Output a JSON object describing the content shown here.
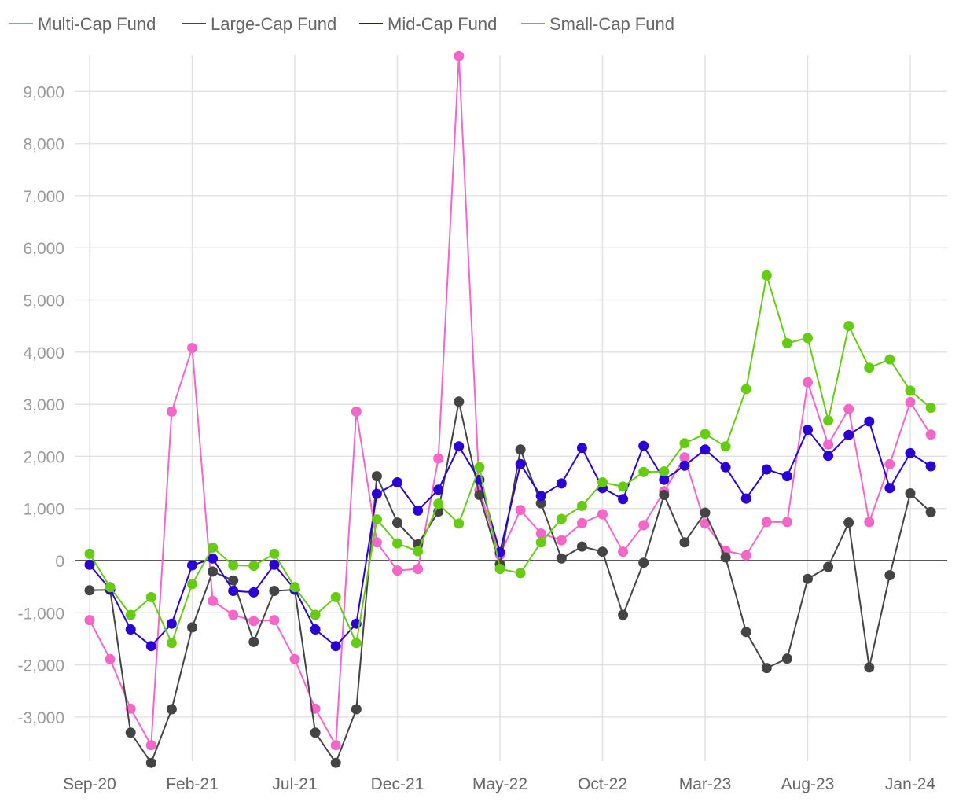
{
  "chart_data": {
    "type": "line",
    "title": "",
    "xlabel": "",
    "ylabel": "",
    "ylim": [
      -3900,
      9700
    ],
    "y_ticks": [
      -3000,
      -2000,
      -1000,
      0,
      1000,
      2000,
      3000,
      4000,
      5000,
      6000,
      7000,
      8000,
      9000
    ],
    "y_tick_labels": [
      "-3,000",
      "-2,000",
      "-1,000",
      "0",
      "1,000",
      "2,000",
      "3,000",
      "4,000",
      "5,000",
      "6,000",
      "7,000",
      "8,000",
      "9,000"
    ],
    "x_tick_labels": [
      "Sep-20",
      "Feb-21",
      "Jul-21",
      "Dec-21",
      "May-22",
      "Oct-22",
      "Mar-23",
      "Aug-23",
      "Jan-24"
    ],
    "categories": [
      "Sep-20",
      "Oct-20",
      "Nov-20",
      "Dec-20",
      "Jan-21",
      "Feb-21",
      "Mar-21",
      "Apr-21",
      "May-21",
      "Jun-21",
      "Jul-21",
      "Aug-21",
      "Sep-21",
      "Oct-21",
      "Nov-21",
      "Dec-21",
      "Jan-22",
      "Feb-22",
      "Mar-22",
      "Apr-22",
      "May-22",
      "Jun-22",
      "Jul-22",
      "Aug-22",
      "Sep-22",
      "Oct-22",
      "Nov-22",
      "Dec-22",
      "Jan-23",
      "Feb-23",
      "Mar-23",
      "Apr-23",
      "May-23",
      "Jun-23",
      "Jul-23",
      "Aug-23",
      "Sep-23",
      "Oct-23",
      "Nov-23",
      "Dec-23",
      "Jan-24",
      "Feb-24"
    ],
    "grid": true,
    "legend_position": "top-left",
    "series": [
      {
        "name": "Multi-Cap Fund",
        "color": "#f466c7",
        "values": [
          -1140,
          -1890,
          -2840,
          -3540,
          2860,
          4080,
          -770,
          -1040,
          -1160,
          -1140,
          -1890,
          -2840,
          -3540,
          2860,
          350,
          -190,
          -160,
          1960,
          9680,
          1350,
          110,
          970,
          520,
          390,
          720,
          890,
          170,
          680,
          1330,
          1980,
          710,
          190,
          100,
          740,
          740,
          3420,
          2230,
          2910,
          740,
          1850,
          3040,
          2420
        ]
      },
      {
        "name": "Large-Cap Fund",
        "color": "#444444",
        "values": [
          -570,
          -560,
          -3300,
          -3880,
          -2850,
          -1280,
          -210,
          -380,
          -1560,
          -580,
          -560,
          -3300,
          -3880,
          -2850,
          1620,
          730,
          310,
          940,
          3050,
          1260,
          -70,
          2130,
          1100,
          40,
          270,
          170,
          -1040,
          -40,
          1260,
          350,
          920,
          60,
          -1370,
          -2060,
          -1880,
          -350,
          -120,
          730,
          -2050,
          -280,
          1290,
          930
        ]
      },
      {
        "name": "Mid-Cap Fund",
        "color": "#2b00d6",
        "values": [
          -80,
          -550,
          -1320,
          -1640,
          -1210,
          -90,
          40,
          -580,
          -610,
          -80,
          -550,
          -1320,
          -1640,
          -1210,
          1280,
          1500,
          960,
          1360,
          2190,
          1550,
          160,
          1850,
          1240,
          1480,
          2160,
          1390,
          1180,
          2200,
          1550,
          1820,
          2130,
          1790,
          1190,
          1750,
          1620,
          2510,
          2010,
          2410,
          2670,
          1390,
          2060,
          1810
        ]
      },
      {
        "name": "Small-Cap Fund",
        "color": "#66cc11",
        "values": [
          130,
          -510,
          -1040,
          -700,
          -1580,
          -450,
          250,
          -90,
          -100,
          130,
          -510,
          -1040,
          -700,
          -1580,
          790,
          330,
          180,
          1090,
          710,
          1790,
          -160,
          -240,
          350,
          800,
          1050,
          1500,
          1420,
          1700,
          1710,
          2250,
          2430,
          2190,
          3290,
          5470,
          4170,
          4270,
          2690,
          4500,
          3700,
          3860,
          3260,
          2930
        ]
      }
    ]
  }
}
